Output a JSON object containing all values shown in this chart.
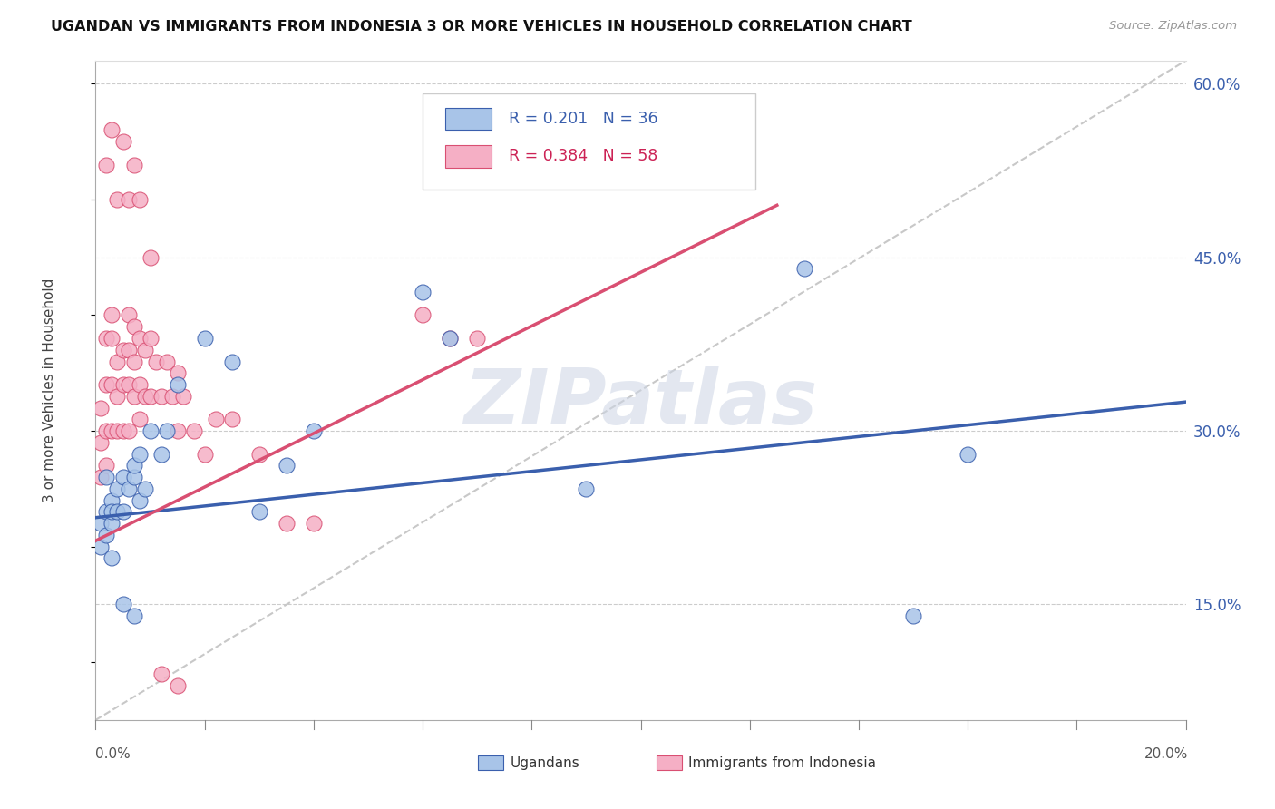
{
  "title": "UGANDAN VS IMMIGRANTS FROM INDONESIA 3 OR MORE VEHICLES IN HOUSEHOLD CORRELATION CHART",
  "source": "Source: ZipAtlas.com",
  "ylabel": "3 or more Vehicles in Household",
  "xmin": 0.0,
  "xmax": 0.2,
  "ymin": 0.05,
  "ymax": 0.62,
  "right_yticks": [
    0.15,
    0.3,
    0.45,
    0.6
  ],
  "right_ytick_labels": [
    "15.0%",
    "30.0%",
    "45.0%",
    "60.0%"
  ],
  "ugandan_R": 0.201,
  "ugandan_N": 36,
  "indonesia_R": 0.384,
  "indonesia_N": 58,
  "ugandan_color": "#a8c4e8",
  "indonesia_color": "#f5afc5",
  "ugandan_line_color": "#3a5fad",
  "indonesia_line_color": "#d94f72",
  "diagonal_color": "#c8c8c8",
  "watermark": "ZIPatlas",
  "watermark_color": "#cdd5e5",
  "legend_blue_color": "#3a5fad",
  "legend_red_color": "#cc2255",
  "ugandan_trendline_x0": 0.0,
  "ugandan_trendline_y0": 0.225,
  "ugandan_trendline_x1": 0.2,
  "ugandan_trendline_y1": 0.325,
  "indonesia_trendline_x0": 0.0,
  "indonesia_trendline_y0": 0.205,
  "indonesia_trendline_x1": 0.125,
  "indonesia_trendline_y1": 0.495,
  "ugandan_x": [
    0.001,
    0.001,
    0.002,
    0.002,
    0.002,
    0.003,
    0.003,
    0.003,
    0.004,
    0.004,
    0.005,
    0.005,
    0.006,
    0.007,
    0.007,
    0.008,
    0.008,
    0.009,
    0.01,
    0.012,
    0.013,
    0.015,
    0.02,
    0.025,
    0.03,
    0.035,
    0.04,
    0.06,
    0.065,
    0.09,
    0.13,
    0.15,
    0.16,
    0.003,
    0.005,
    0.007
  ],
  "ugandan_y": [
    0.22,
    0.2,
    0.26,
    0.23,
    0.21,
    0.24,
    0.22,
    0.23,
    0.25,
    0.23,
    0.26,
    0.23,
    0.25,
    0.26,
    0.27,
    0.28,
    0.24,
    0.25,
    0.3,
    0.28,
    0.3,
    0.34,
    0.38,
    0.36,
    0.23,
    0.27,
    0.3,
    0.42,
    0.38,
    0.25,
    0.44,
    0.14,
    0.28,
    0.19,
    0.15,
    0.14
  ],
  "indonesia_x": [
    0.001,
    0.001,
    0.001,
    0.002,
    0.002,
    0.002,
    0.002,
    0.003,
    0.003,
    0.003,
    0.003,
    0.004,
    0.004,
    0.004,
    0.005,
    0.005,
    0.005,
    0.006,
    0.006,
    0.006,
    0.006,
    0.007,
    0.007,
    0.007,
    0.008,
    0.008,
    0.008,
    0.009,
    0.009,
    0.01,
    0.01,
    0.011,
    0.012,
    0.013,
    0.014,
    0.015,
    0.015,
    0.016,
    0.018,
    0.02,
    0.022,
    0.025,
    0.03,
    0.035,
    0.04,
    0.06,
    0.065,
    0.07,
    0.002,
    0.003,
    0.004,
    0.005,
    0.006,
    0.007,
    0.008,
    0.01,
    0.012,
    0.015
  ],
  "indonesia_y": [
    0.32,
    0.29,
    0.26,
    0.38,
    0.34,
    0.3,
    0.27,
    0.4,
    0.38,
    0.34,
    0.3,
    0.36,
    0.33,
    0.3,
    0.37,
    0.34,
    0.3,
    0.4,
    0.37,
    0.34,
    0.3,
    0.39,
    0.36,
    0.33,
    0.38,
    0.34,
    0.31,
    0.37,
    0.33,
    0.38,
    0.33,
    0.36,
    0.33,
    0.36,
    0.33,
    0.35,
    0.3,
    0.33,
    0.3,
    0.28,
    0.31,
    0.31,
    0.28,
    0.22,
    0.22,
    0.4,
    0.38,
    0.38,
    0.53,
    0.56,
    0.5,
    0.55,
    0.5,
    0.53,
    0.5,
    0.45,
    0.09,
    0.08
  ]
}
